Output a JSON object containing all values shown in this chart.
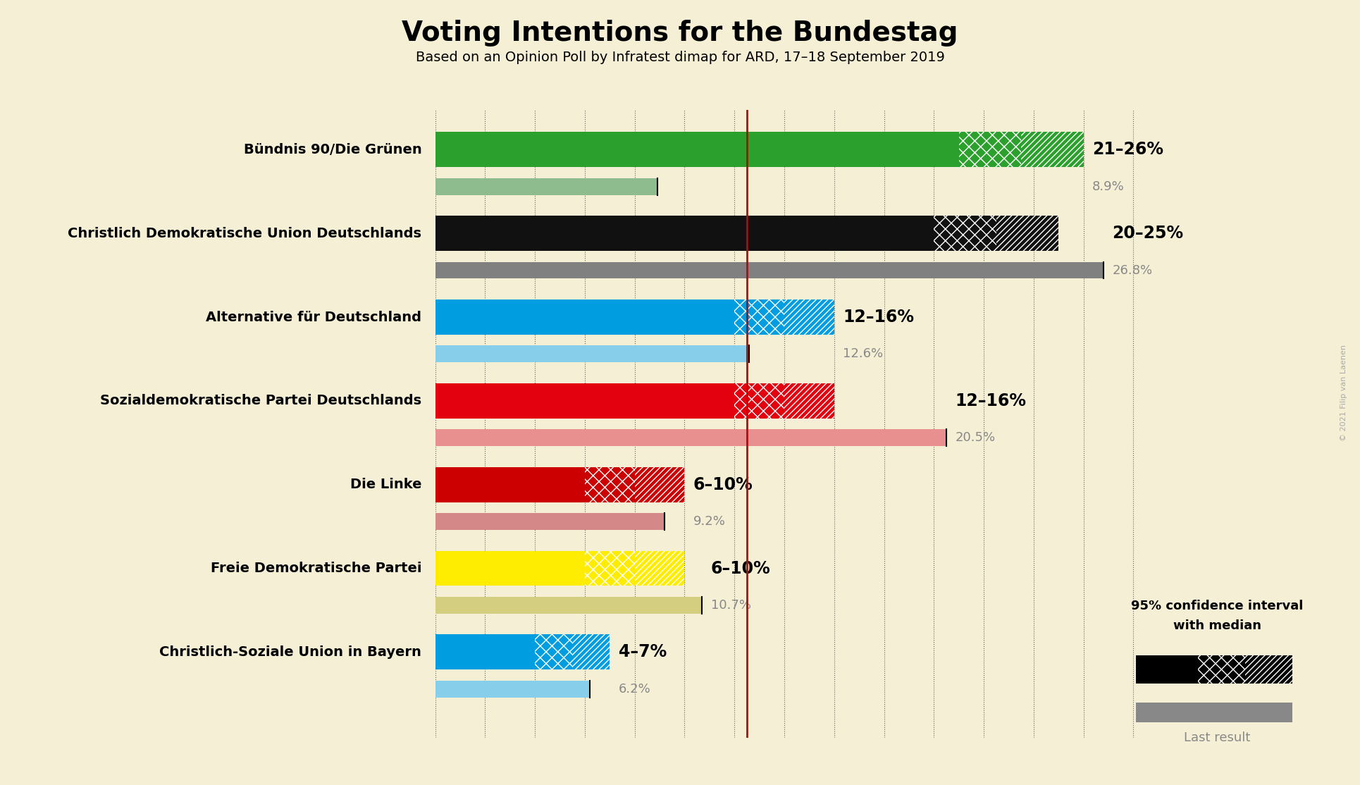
{
  "title": "Voting Intentions for the Bundestag",
  "subtitle": "Based on an Opinion Poll by Infratest dimap for ARD, 17–18 September 2019",
  "background_color": "#f5f0d5",
  "parties": [
    {
      "name": "Bündnis 90/Die Grünen",
      "color": "#2ca02c",
      "color_light": "#8fbc8f",
      "ci_low": 21,
      "ci_high": 26,
      "median": 23.5,
      "last_result": 8.9,
      "label": "21–26%",
      "last_label": "8.9%"
    },
    {
      "name": "Christlich Demokratische Union Deutschlands",
      "color": "#111111",
      "color_light": "#808080",
      "ci_low": 20,
      "ci_high": 25,
      "median": 22.5,
      "last_result": 26.8,
      "label": "20–25%",
      "last_label": "26.8%"
    },
    {
      "name": "Alternative für Deutschland",
      "color": "#009ee0",
      "color_light": "#87ceeb",
      "ci_low": 12,
      "ci_high": 16,
      "median": 14,
      "last_result": 12.6,
      "label": "12–16%",
      "last_label": "12.6%"
    },
    {
      "name": "Sozialdemokratische Partei Deutschlands",
      "color": "#e3000f",
      "color_light": "#e89090",
      "ci_low": 12,
      "ci_high": 16,
      "median": 14,
      "last_result": 20.5,
      "label": "12–16%",
      "last_label": "20.5%"
    },
    {
      "name": "Die Linke",
      "color": "#cc0000",
      "color_light": "#d48888",
      "ci_low": 6,
      "ci_high": 10,
      "median": 8,
      "last_result": 9.2,
      "label": "6–10%",
      "last_label": "9.2%"
    },
    {
      "name": "Freie Demokratische Partei",
      "color": "#ffed00",
      "color_light": "#d4cf80",
      "ci_low": 6,
      "ci_high": 10,
      "median": 8,
      "last_result": 10.7,
      "label": "6–10%",
      "last_label": "10.7%"
    },
    {
      "name": "Christlich-Soziale Union in Bayern",
      "color": "#009ee0",
      "color_light": "#87ceeb",
      "ci_low": 4,
      "ci_high": 7,
      "median": 5.5,
      "last_result": 6.2,
      "label": "4–7%",
      "last_label": "6.2%"
    }
  ],
  "x_max": 28,
  "red_line_x": 12.5,
  "copyright": "© 2021 Filip van Laenen"
}
